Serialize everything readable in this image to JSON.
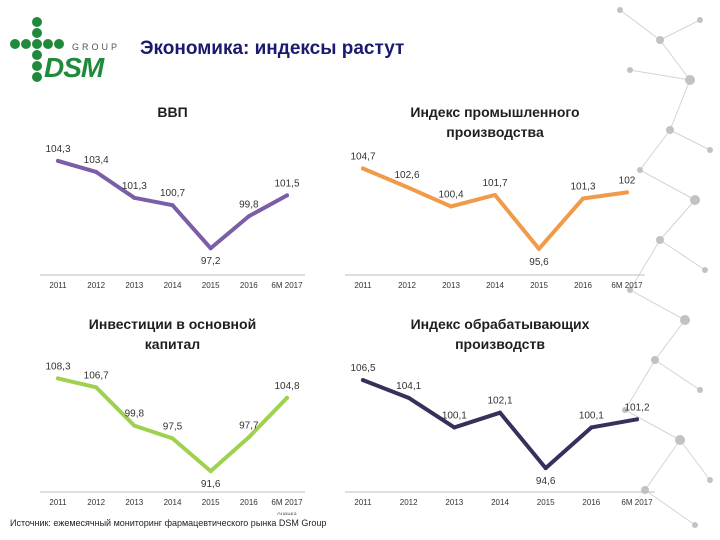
{
  "header": {
    "title": "Экономика: индексы растут",
    "logo_group": "GROUP",
    "logo_name": "DSM"
  },
  "source": "Источник: ежемесячный мониторинг фармацевтического рынка DSM Group",
  "chart_data": [
    {
      "type": "line",
      "title_lines": [
        "ВВП"
      ],
      "categories": [
        "2011",
        "2012",
        "2013",
        "2014",
        "2015",
        "2016",
        "6М 2017"
      ],
      "values": [
        104.3,
        103.4,
        101.3,
        100.7,
        97.2,
        99.8,
        101.5
      ],
      "labels": [
        "104,3",
        "103,4",
        "101,3",
        "100,7",
        "97,2",
        "99,8",
        "101,5"
      ],
      "color": "#7a5ea8",
      "ylim": [
        96,
        106
      ]
    },
    {
      "type": "line",
      "title_lines": [
        "Индекс промышленного",
        "производства"
      ],
      "categories": [
        "2011",
        "2012",
        "2013",
        "2014",
        "2015",
        "2016",
        "6М 2017"
      ],
      "values": [
        104.7,
        102.6,
        100.4,
        101.7,
        95.6,
        101.3,
        102
      ],
      "labels": [
        "104,7",
        "102,6",
        "100,4",
        "101,7",
        "95,6",
        "101,3",
        "102"
      ],
      "color": "#f09a4a",
      "ylim": [
        94,
        106
      ]
    },
    {
      "type": "line",
      "title_lines": [
        "Инвестиции в основной",
        "капитал"
      ],
      "categories": [
        "2011",
        "2012",
        "2013",
        "2014",
        "2015",
        "2016",
        "6М 2017"
      ],
      "values": [
        108.3,
        106.7,
        99.8,
        97.5,
        91.6,
        97.7,
        104.8
      ],
      "labels": [
        "108,3",
        "106,7",
        "99,8",
        "97,5",
        "91,6",
        "97,7",
        "104,8"
      ],
      "note": "оценка",
      "color": "#9ed24e",
      "ylim": [
        90,
        110
      ]
    },
    {
      "type": "line",
      "title_lines": [
        "Индекс обрабатывающих",
        "производств"
      ],
      "categories": [
        "2011",
        "2012",
        "2013",
        "2014",
        "2015",
        "2016",
        "6М 2017"
      ],
      "values": [
        106.5,
        104.1,
        100.1,
        102.1,
        94.6,
        100.1,
        101.2
      ],
      "labels": [
        "106,5",
        "104,1",
        "100,1",
        "102,1",
        "94,6",
        "100,1",
        "101,2"
      ],
      "color": "#3a2e5a",
      "ylim": [
        93,
        108
      ]
    }
  ]
}
